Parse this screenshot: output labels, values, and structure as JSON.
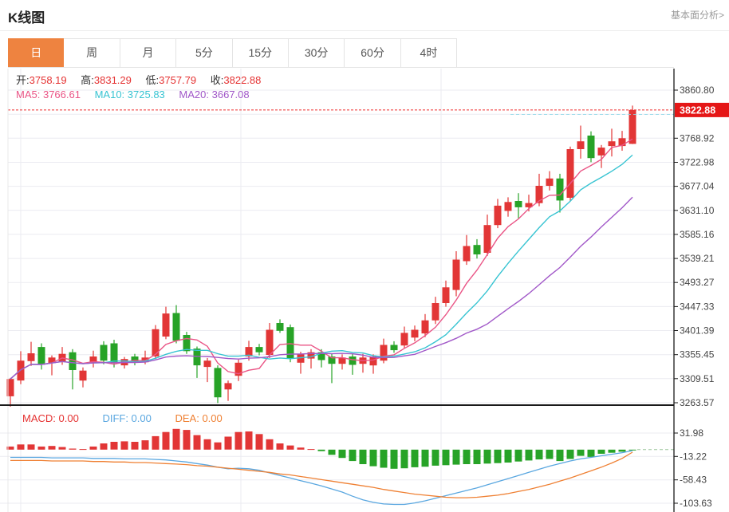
{
  "header": {
    "title": "K线图",
    "link": "基本面分析>"
  },
  "tabs": {
    "items": [
      "日",
      "周",
      "月",
      "5分",
      "15分",
      "30分",
      "60分",
      "4时"
    ],
    "active_index": 0
  },
  "info": {
    "open_label": "开:",
    "open": "3758.19",
    "high_label": "高:",
    "high": "3831.29",
    "low_label": "低:",
    "low": "3757.79",
    "close_label": "收:",
    "close": "3822.88",
    "ma5_label": "MA5:",
    "ma5": "3766.61",
    "ma10_label": "MA10:",
    "ma10": "3725.83",
    "ma20_label": "MA20:",
    "ma20": "3667.08"
  },
  "colors": {
    "up": "#e23636",
    "down": "#27a327",
    "ma5": "#ea5586",
    "ma10": "#38c4d2",
    "ma20": "#a158c8",
    "diff": "#5aa7e0",
    "dea": "#ef8033",
    "info_value": "#e53333",
    "info_label": "#333333",
    "badge": "#e51717",
    "price_line": "#ef3030",
    "tab_active": "#ee8340",
    "link": "#999999",
    "grid": "#ebebf1",
    "axis": "#222222",
    "axis_text": "#444444"
  },
  "chart_data": {
    "type": "candlestick_with_macd",
    "title": "K线图",
    "period": "日",
    "main": {
      "y_ticks": [
        "3860.80",
        "3768.92",
        "3722.98",
        "3677.04",
        "3631.10",
        "3585.16",
        "3539.21",
        "3493.27",
        "3447.33",
        "3401.39",
        "3355.45",
        "3309.51",
        "3263.57"
      ],
      "y_top": 3860.8,
      "y_bottom": 3263.57,
      "price_badge": "3822.88",
      "price_line_value": 3822.88,
      "ma_periods": [
        5,
        10,
        20
      ],
      "ma_current": {
        "ma5": 3766.61,
        "ma10": 3725.83,
        "ma20": 3667.08
      },
      "ohlc_current": {
        "open": 3758.19,
        "high": 3831.29,
        "low": 3757.79,
        "close": 3822.88
      },
      "candles_ohlc": [
        [
          3276,
          3311,
          3256,
          3309
        ],
        [
          3306,
          3362,
          3299,
          3344
        ],
        [
          3343,
          3380,
          3334,
          3358
        ],
        [
          3370,
          3377,
          3327,
          3336
        ],
        [
          3339,
          3354,
          3316,
          3350
        ],
        [
          3342,
          3370,
          3336,
          3357
        ],
        [
          3360,
          3366,
          3289,
          3326
        ],
        [
          3306,
          3331,
          3293,
          3325
        ],
        [
          3340,
          3363,
          3331,
          3352
        ],
        [
          3374,
          3381,
          3337,
          3344
        ],
        [
          3377,
          3384,
          3331,
          3339
        ],
        [
          3335,
          3351,
          3329,
          3347
        ],
        [
          3352,
          3357,
          3335,
          3340
        ],
        [
          3341,
          3363,
          3337,
          3350
        ],
        [
          3352,
          3412,
          3347,
          3404
        ],
        [
          3390,
          3447,
          3385,
          3434
        ],
        [
          3435,
          3450,
          3377,
          3382
        ],
        [
          3393,
          3399,
          3357,
          3362
        ],
        [
          3367,
          3371,
          3311,
          3335
        ],
        [
          3332,
          3349,
          3303,
          3344
        ],
        [
          3330,
          3335,
          3263,
          3274
        ],
        [
          3289,
          3306,
          3267,
          3301
        ],
        [
          3315,
          3346,
          3305,
          3340
        ],
        [
          3352,
          3382,
          3344,
          3370
        ],
        [
          3370,
          3376,
          3354,
          3360
        ],
        [
          3355,
          3416,
          3349,
          3403
        ],
        [
          3416,
          3423,
          3397,
          3401
        ],
        [
          3408,
          3413,
          3341,
          3348
        ],
        [
          3340,
          3361,
          3319,
          3356
        ],
        [
          3348,
          3366,
          3329,
          3360
        ],
        [
          3360,
          3366,
          3331,
          3345
        ],
        [
          3352,
          3357,
          3301,
          3338
        ],
        [
          3338,
          3356,
          3327,
          3350
        ],
        [
          3352,
          3357,
          3317,
          3336
        ],
        [
          3338,
          3357,
          3321,
          3350
        ],
        [
          3335,
          3356,
          3319,
          3352
        ],
        [
          3344,
          3386,
          3339,
          3374
        ],
        [
          3374,
          3381,
          3359,
          3364
        ],
        [
          3373,
          3409,
          3367,
          3397
        ],
        [
          3388,
          3411,
          3381,
          3403
        ],
        [
          3396,
          3433,
          3389,
          3421
        ],
        [
          3421,
          3466,
          3414,
          3454
        ],
        [
          3454,
          3497,
          3447,
          3484
        ],
        [
          3479,
          3553,
          3467,
          3537
        ],
        [
          3534,
          3584,
          3527,
          3563
        ],
        [
          3565,
          3576,
          3539,
          3547
        ],
        [
          3550,
          3623,
          3544,
          3603
        ],
        [
          3603,
          3653,
          3597,
          3640
        ],
        [
          3630,
          3656,
          3619,
          3647
        ],
        [
          3649,
          3664,
          3616,
          3637
        ],
        [
          3637,
          3661,
          3629,
          3645
        ],
        [
          3645,
          3701,
          3639,
          3678
        ],
        [
          3678,
          3706,
          3669,
          3692
        ],
        [
          3692,
          3701,
          3627,
          3650
        ],
        [
          3655,
          3753,
          3649,
          3748
        ],
        [
          3748,
          3793,
          3730,
          3763
        ],
        [
          3774,
          3782,
          3723,
          3731
        ],
        [
          3736,
          3756,
          3712,
          3751
        ],
        [
          3754,
          3787,
          3734,
          3763
        ],
        [
          3754,
          3783,
          3745,
          3769
        ],
        [
          3758.19,
          3831.29,
          3757.79,
          3822.88
        ]
      ]
    },
    "macd": {
      "labels": {
        "macd": "MACD: 0.00",
        "diff": "DIFF: 0.00",
        "dea": "DEA: 0.00"
      },
      "y_ticks": [
        "31.98",
        "-13.22",
        "-58.43",
        "-103.63"
      ],
      "y_top": 31.98,
      "y_bottom": -103.63,
      "histogram": [
        6,
        10,
        10,
        6,
        7,
        5,
        2,
        1,
        6,
        12,
        15,
        16,
        15,
        18,
        26,
        34,
        40,
        38,
        28,
        20,
        14,
        25,
        34,
        35,
        30,
        20,
        12,
        8,
        4,
        1,
        -3,
        -10,
        -16,
        -22,
        -28,
        -32,
        -35,
        -37,
        -36,
        -34,
        -33,
        -31,
        -30,
        -29,
        -28,
        -28,
        -27,
        -26,
        -25,
        -23,
        -21,
        -19,
        -18,
        -22,
        -18,
        -12,
        -14,
        -8,
        -6,
        -4,
        -1
      ],
      "diff": [
        -15,
        -15,
        -15,
        -15,
        -16,
        -16,
        -16,
        -16,
        -17,
        -17,
        -17,
        -18,
        -18,
        -18,
        -19,
        -20,
        -22,
        -24,
        -27,
        -30,
        -34,
        -37,
        -36,
        -37,
        -40,
        -45,
        -50,
        -55,
        -60,
        -65,
        -70,
        -76,
        -82,
        -90,
        -97,
        -102,
        -105,
        -106,
        -106,
        -103,
        -99,
        -94,
        -89,
        -84,
        -79,
        -74,
        -68,
        -62,
        -56,
        -50,
        -44,
        -38,
        -32,
        -27,
        -22,
        -18,
        -15,
        -12,
        -9,
        -6,
        -2
      ],
      "dea": [
        -21,
        -21,
        -21,
        -21,
        -22,
        -22,
        -22,
        -22,
        -23,
        -23,
        -24,
        -24,
        -25,
        -25,
        -26,
        -27,
        -28,
        -29,
        -31,
        -32,
        -34,
        -36,
        -38,
        -40,
        -42,
        -44,
        -47,
        -49,
        -52,
        -55,
        -58,
        -61,
        -64,
        -67,
        -70,
        -73,
        -77,
        -80,
        -83,
        -86,
        -88,
        -90,
        -92,
        -93,
        -93,
        -92,
        -90,
        -88,
        -85,
        -81,
        -77,
        -72,
        -67,
        -61,
        -55,
        -48,
        -41,
        -34,
        -26,
        -17,
        -5
      ]
    }
  }
}
